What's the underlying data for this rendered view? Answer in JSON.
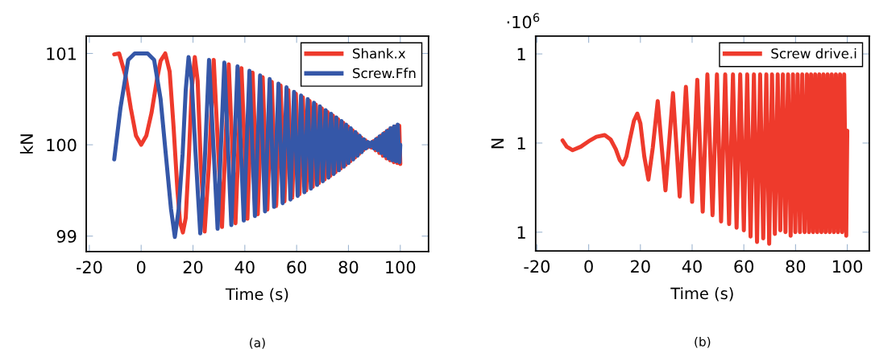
{
  "chart_data": [
    {
      "type": "line",
      "xlabel": "Time (s)",
      "ylabel": "kN",
      "xlim": [
        -21.2,
        110.9
      ],
      "ylim": [
        98.83,
        101.19
      ],
      "xticks": [
        -20,
        0,
        20,
        40,
        60,
        80,
        100
      ],
      "yticks": [
        99,
        100,
        101
      ],
      "legend": "top right",
      "grid": false,
      "annotations": [
        "(a)"
      ],
      "series": [
        {
          "name": "Shank.x",
          "color": "#ee3a2c",
          "x": [
            -10.4,
            -8.5,
            -6,
            -4,
            -2,
            0,
            2,
            4,
            6,
            7.5,
            9.3,
            11,
            12.5,
            14,
            15,
            16.1,
            17.2,
            18.3,
            19.5,
            20.7,
            21.8,
            23,
            24.5,
            26.2,
            28.0,
            31.2,
            33.8,
            36.4,
            38.7,
            41.0,
            43.0,
            45.0,
            46.9,
            48.7,
            50.4,
            52.1,
            53.8,
            55.3,
            56.8,
            58.3,
            59.7,
            61.1,
            62.4,
            63.7,
            65.0,
            66.2,
            67.4,
            68.6,
            69.7,
            70.8,
            71.9,
            73.0,
            74.0,
            75.0,
            76.0,
            77.0,
            78.0,
            78.9,
            79.8,
            80.7,
            81.6,
            82.5,
            83.3,
            84.1,
            84.9,
            85.7,
            86.5,
            87.3,
            88.1,
            88.9,
            89.7,
            90.5,
            91.2,
            91.9,
            92.6,
            93.3,
            94.0,
            94.7,
            95.4,
            96.1,
            96.8,
            97.5,
            98.2,
            98.9,
            99.6,
            100
          ],
          "values": [
            100.99,
            101.0,
            100.75,
            100.4,
            100.1,
            100.0,
            100.1,
            100.35,
            100.7,
            100.92,
            101.0,
            100.8,
            100.2,
            99.5,
            99.15,
            99.04,
            99.2,
            99.8,
            100.6,
            100.96,
            100.7,
            99.8,
            99.05,
            99.8,
            100.93,
            99.1,
            100.88,
            99.14,
            100.84,
            99.19,
            100.79,
            99.24,
            100.74,
            99.29,
            100.69,
            99.33,
            100.65,
            99.38,
            100.6,
            99.42,
            100.56,
            99.46,
            100.52,
            99.5,
            100.48,
            99.54,
            100.44,
            99.58,
            100.4,
            99.62,
            100.36,
            99.66,
            100.32,
            99.7,
            100.28,
            99.74,
            100.24,
            99.78,
            100.2,
            99.82,
            100.16,
            99.86,
            100.12,
            99.9,
            100.08,
            99.94,
            100.05,
            99.97,
            100.02,
            99.97,
            100.04,
            99.94,
            100.07,
            99.91,
            100.1,
            99.88,
            100.13,
            99.85,
            100.16,
            99.83,
            100.18,
            99.81,
            100.2,
            99.8,
            100.21,
            99.79
          ]
        },
        {
          "name": "Screw.Ffn",
          "color": "#3557a8",
          "x": [
            -10.4,
            -8,
            -5,
            -2.5,
            0,
            2.5,
            5,
            7.5,
            9.5,
            11.5,
            13,
            14.5,
            16,
            17.2,
            18.3,
            19.5,
            21,
            22.8,
            24.5,
            26.2,
            29.5,
            32.1,
            34.8,
            37.2,
            39.6,
            41.8,
            43.9,
            45.9,
            47.8,
            49.6,
            51.3,
            53.0,
            54.6,
            56.1,
            57.6,
            59.0,
            60.4,
            61.7,
            63.0,
            64.3,
            65.5,
            66.7,
            67.9,
            69.0,
            70.1,
            71.2,
            72.3,
            73.3,
            74.3,
            75.3,
            76.3,
            77.3,
            78.2,
            79.1,
            80.0,
            80.9,
            81.8,
            82.7,
            83.5,
            84.3,
            85.1,
            85.9,
            86.7,
            87.5,
            88.3,
            89.1,
            89.9,
            90.6,
            91.3,
            92.0,
            92.7,
            93.4,
            94.1,
            94.8,
            95.5,
            96.2,
            96.9,
            97.6,
            98.3,
            99.0,
            99.7,
            100
          ],
          "values": [
            99.84,
            100.4,
            100.93,
            101.0,
            101.0,
            101.0,
            100.93,
            100.5,
            99.9,
            99.3,
            98.99,
            99.3,
            99.9,
            100.6,
            100.96,
            100.7,
            99.9,
            99.03,
            99.8,
            100.93,
            99.08,
            100.9,
            99.12,
            100.86,
            99.17,
            100.81,
            99.22,
            100.76,
            99.27,
            100.72,
            99.32,
            100.67,
            99.36,
            100.63,
            99.4,
            100.58,
            99.44,
            100.54,
            99.48,
            100.5,
            99.52,
            100.46,
            99.56,
            100.42,
            99.6,
            100.38,
            99.64,
            100.34,
            99.68,
            100.3,
            99.72,
            100.26,
            99.76,
            100.22,
            99.8,
            100.18,
            99.84,
            100.14,
            99.88,
            100.1,
            99.92,
            100.06,
            99.96,
            100.03,
            99.98,
            100.03,
            99.96,
            100.06,
            99.94,
            100.09,
            99.91,
            100.12,
            99.88,
            100.15,
            99.85,
            100.18,
            99.83,
            100.2,
            99.82,
            100.22,
            99.81,
            100.0
          ]
        }
      ]
    },
    {
      "type": "line",
      "xlabel": "Time (s)",
      "ylabel": "N",
      "xlim": [
        -20.5,
        108.5
      ],
      "ylim": [
        0.9879,
        1.012
      ],
      "xticks": [
        -20,
        0,
        20,
        40,
        60,
        80,
        100
      ],
      "yticks": [
        {
          "value": 0.99,
          "label": "1"
        },
        {
          "value": 1.0,
          "label": "1"
        },
        {
          "value": 1.01,
          "label": "1"
        }
      ],
      "legend": "top right",
      "grid": false,
      "annotations": [
        "·10$^{6}$",
        "(b)"
      ],
      "series": [
        {
          "name": "Screw drive.i",
          "color": "#ee3a2c",
          "x": [
            -10.1,
            -8.5,
            -6.2,
            -3,
            0,
            3,
            6.2,
            8.5,
            10.5,
            12,
            13.3,
            14.6,
            16,
            17.5,
            18.8,
            20,
            21.5,
            23.1,
            24.8,
            26.7,
            29.7,
            32.6,
            35.2,
            37.6,
            40.0,
            42.0,
            44.1,
            45.9,
            47.9,
            49.6,
            51.2,
            52.8,
            54.3,
            55.8,
            57.2,
            58.6,
            60.0,
            61.3,
            62.6,
            63.9,
            65.1,
            66.3,
            67.5,
            68.7,
            69.8,
            70.9,
            72.0,
            73.1,
            74.1,
            75.1,
            76.1,
            77.1,
            78.1,
            79.0,
            79.9,
            80.8,
            81.7,
            82.6,
            83.5,
            84.4,
            85.2,
            86.0,
            86.8,
            87.6,
            88.4,
            89.2,
            90.0,
            90.8,
            91.6,
            92.4,
            93.2,
            94.0,
            94.8,
            95.6,
            96.4,
            97.2,
            98.0,
            98.8,
            99.6,
            100
          ],
          "values": [
            1.0003,
            0.9996,
            0.9992,
            0.9996,
            1.0002,
            1.0007,
            1.0009,
            1.0004,
            0.9993,
            0.9981,
            0.9976,
            0.9985,
            1.0005,
            1.0025,
            1.0033,
            1.0022,
            0.9985,
            0.9959,
            0.9995,
            1.0047,
            0.9947,
            1.0056,
            0.994,
            1.0063,
            0.9934,
            1.0071,
            0.9923,
            1.0077,
            0.9919,
            1.0077,
            0.9912,
            1.0077,
            0.9909,
            1.0077,
            0.9905,
            1.0077,
            0.9902,
            1.0077,
            0.9895,
            1.0077,
            0.9889,
            1.0077,
            0.9893,
            1.0077,
            0.9887,
            1.0077,
            0.9898,
            1.0077,
            0.9902,
            1.0077,
            0.99,
            1.0077,
            0.9896,
            1.0077,
            0.99,
            1.0077,
            0.99,
            1.0077,
            0.99,
            1.0077,
            0.99,
            1.0077,
            0.99,
            1.0077,
            0.99,
            1.0077,
            0.99,
            1.0077,
            0.99,
            1.0077,
            0.99,
            1.0077,
            0.99,
            1.0077,
            0.99,
            1.0077,
            0.99,
            1.0077,
            0.9896,
            1.0014
          ]
        }
      ]
    }
  ]
}
